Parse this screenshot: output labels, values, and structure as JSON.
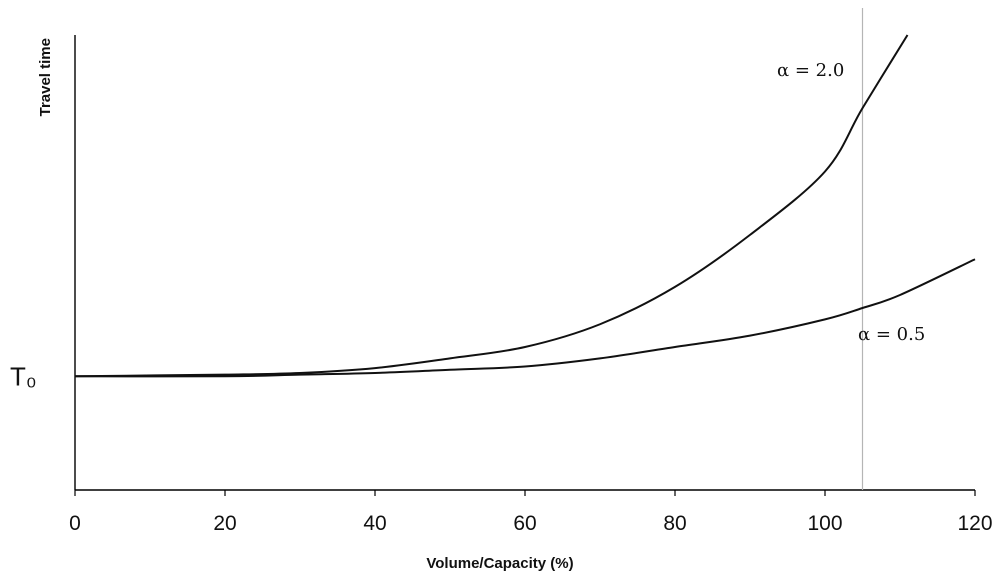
{
  "chart_data": {
    "type": "line",
    "xlabel": "Volume/Capacity (%)",
    "ylabel": "Travel time",
    "xlim": [
      0,
      120
    ],
    "x_ticks": [
      0,
      20,
      40,
      60,
      80,
      100,
      120
    ],
    "x_tick_labels": [
      "0",
      "20",
      "40",
      "60",
      "80",
      "100",
      "120"
    ],
    "y_reference": {
      "label": "T₀",
      "value": 0
    },
    "ylim": [
      -0.7,
      2.1
    ],
    "vertical_line_x": 105,
    "grid": false,
    "legend": "none",
    "series": [
      {
        "label": "α = 2.0",
        "x": [
          0,
          20,
          30,
          40,
          50,
          60,
          70,
          80,
          90,
          100,
          105,
          111
        ],
        "y": [
          0,
          0.01,
          0.02,
          0.05,
          0.11,
          0.18,
          0.32,
          0.55,
          0.87,
          1.26,
          1.65,
          2.1
        ]
      },
      {
        "label": "α = 0.5",
        "x": [
          0,
          20,
          30,
          40,
          50,
          60,
          70,
          80,
          90,
          100,
          105,
          110,
          120
        ],
        "y": [
          0,
          0.0,
          0.01,
          0.02,
          0.04,
          0.06,
          0.11,
          0.18,
          0.25,
          0.35,
          0.42,
          0.5,
          0.72
        ]
      }
    ],
    "annotations": [
      {
        "text": "α = 2.0",
        "series": 0
      },
      {
        "text": "α = 0.5",
        "series": 1
      }
    ]
  }
}
